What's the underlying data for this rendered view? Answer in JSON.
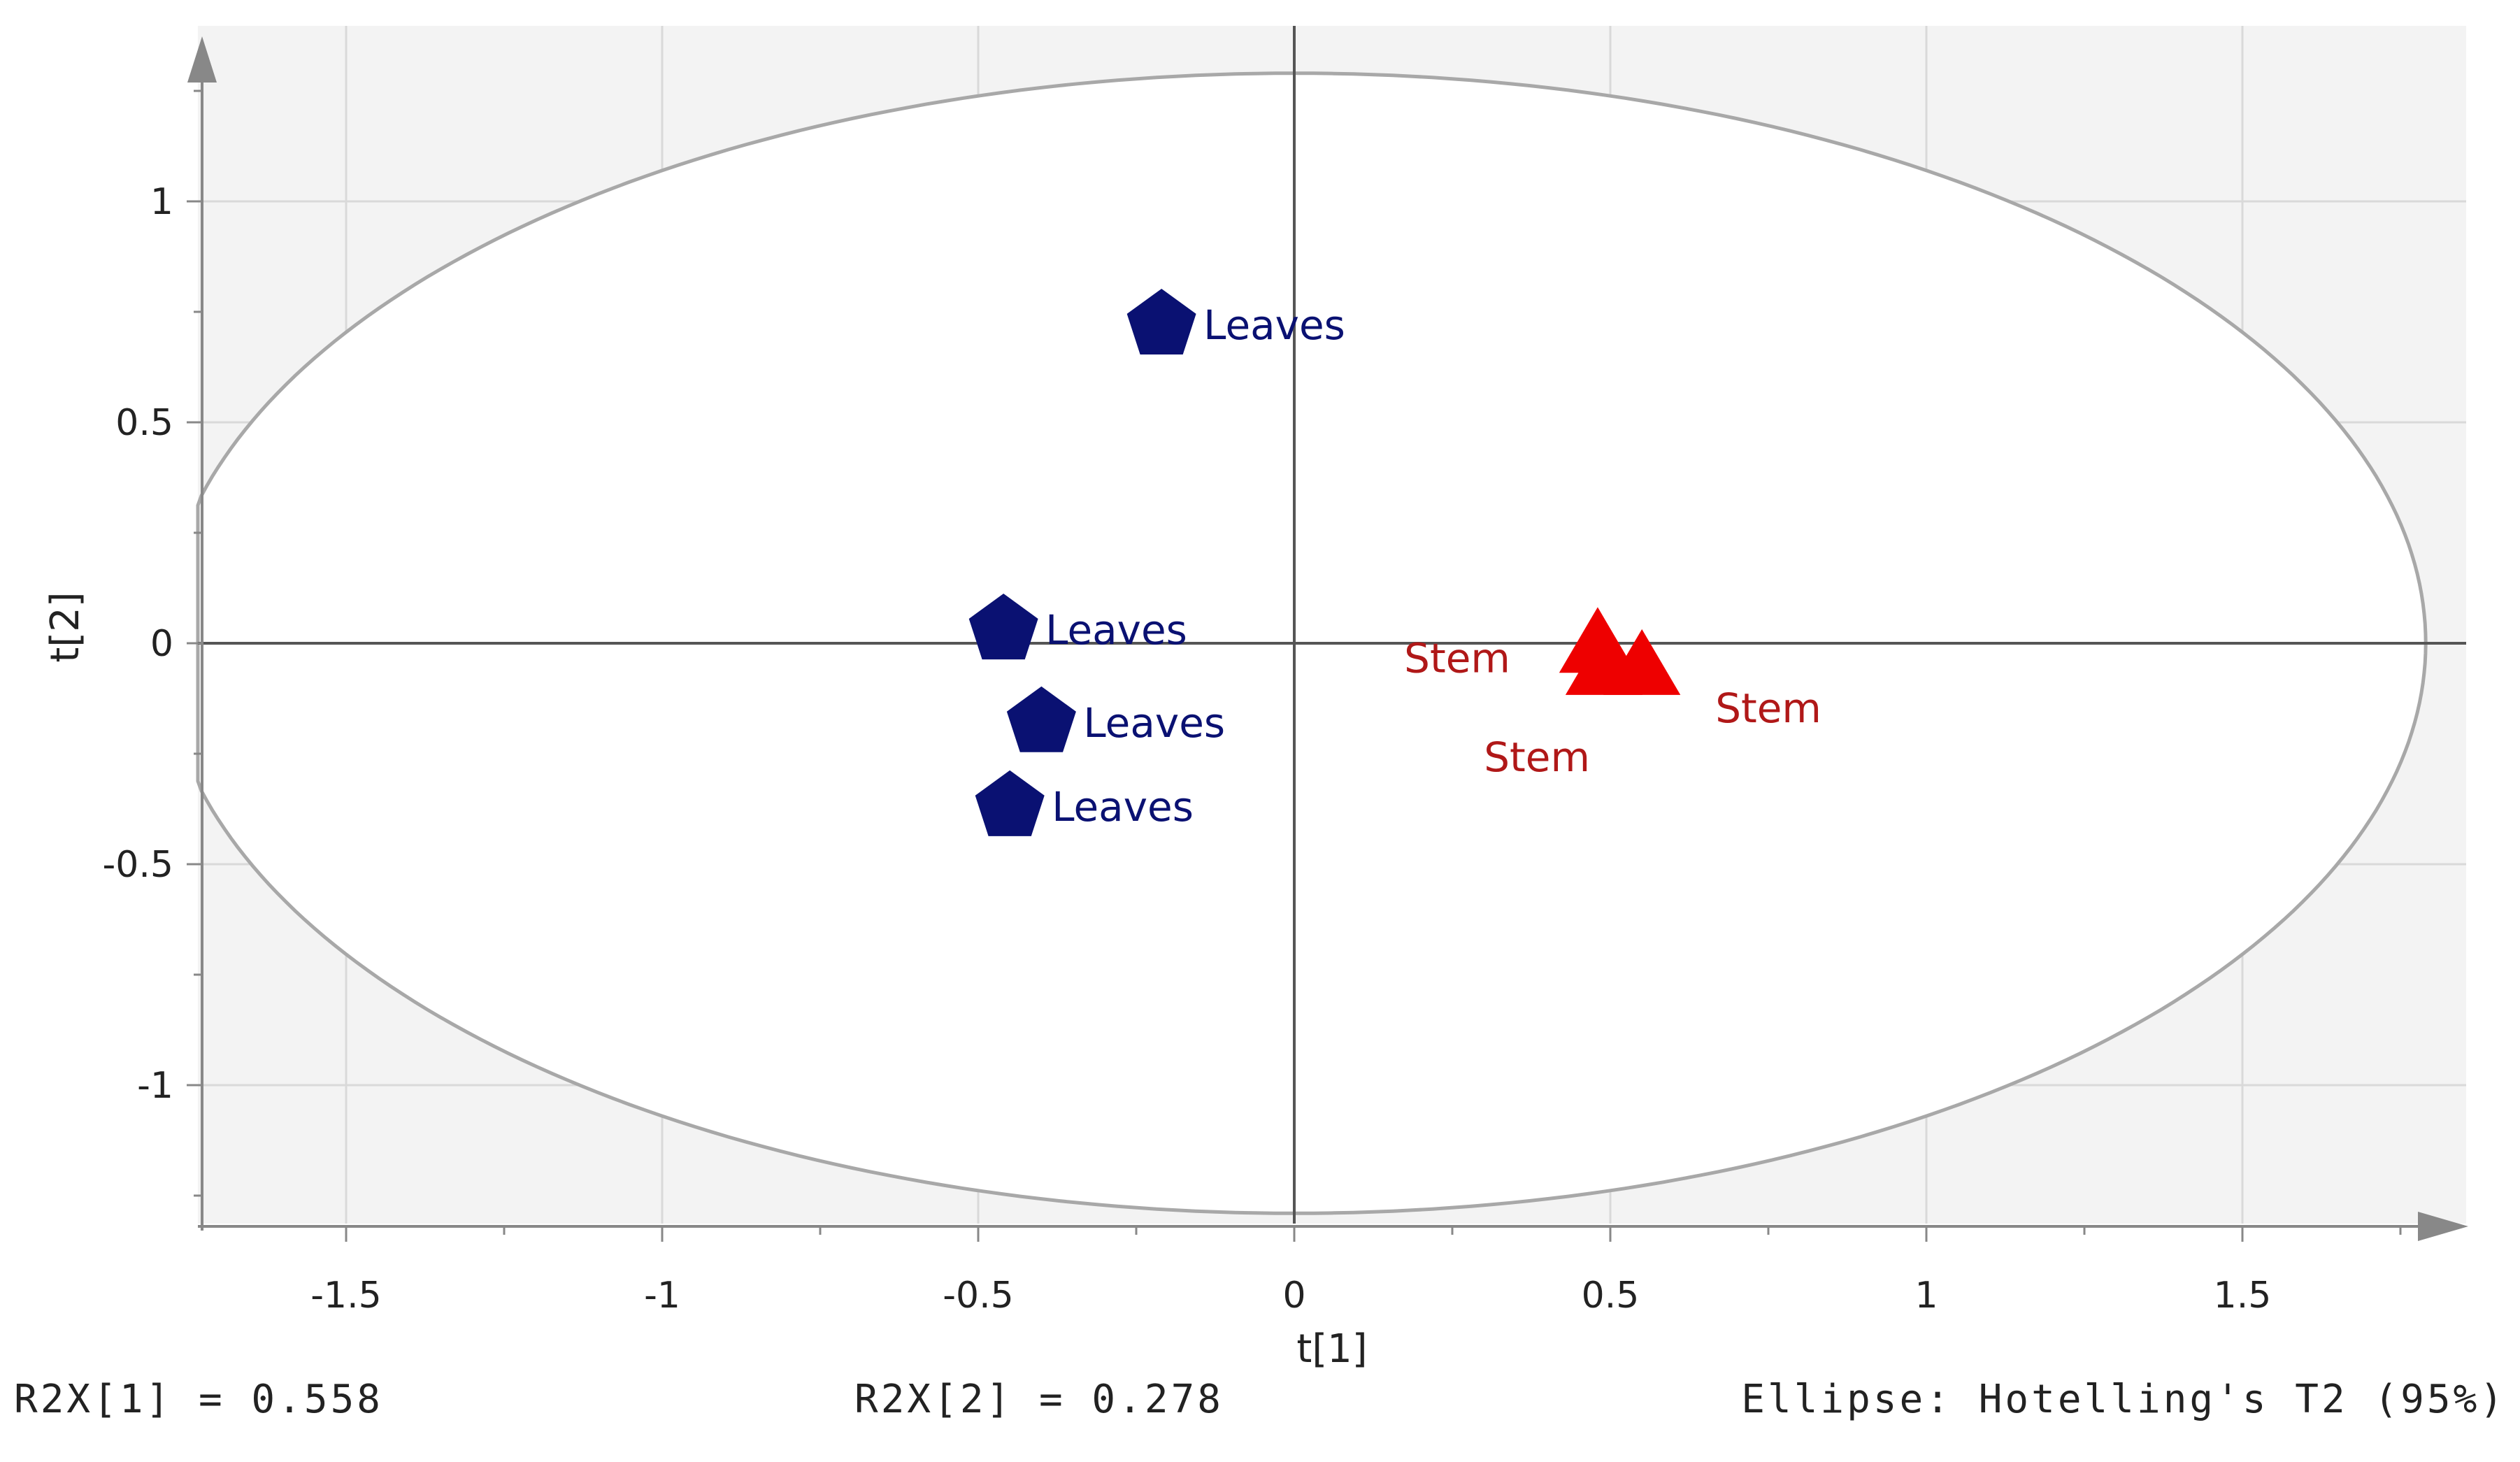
{
  "chart_data": {
    "type": "scatter",
    "xlabel": "t[1]",
    "ylabel": "t[2]",
    "xlim": [
      -1.75,
      1.8
    ],
    "ylim": [
      -1.3,
      1.35
    ],
    "x_ticks": [
      {
        "value": -1.5,
        "label": "-1.5"
      },
      {
        "value": -1,
        "label": "-1"
      },
      {
        "value": -0.5,
        "label": "-0.5"
      },
      {
        "value": 0,
        "label": "0"
      },
      {
        "value": 0.5,
        "label": "0.5"
      },
      {
        "value": 1,
        "label": "1"
      },
      {
        "value": 1.5,
        "label": "1.5"
      }
    ],
    "y_ticks": [
      {
        "value": 1,
        "label": "1"
      },
      {
        "value": 0.5,
        "label": "0.5"
      },
      {
        "value": 0,
        "label": "0"
      },
      {
        "value": -0.5,
        "label": "-0.5"
      },
      {
        "value": -1,
        "label": "-1"
      }
    ],
    "grid": true,
    "ellipse": {
      "rx": 1.79,
      "ry": 1.29
    },
    "series": [
      {
        "name": "Leaves",
        "marker": "pentagon",
        "color": "#0a1172",
        "points": [
          {
            "x": -0.21,
            "y": 0.72,
            "label": "Leaves"
          },
          {
            "x": -0.46,
            "y": 0.03,
            "label": "Leaves"
          },
          {
            "x": -0.4,
            "y": -0.18,
            "label": "Leaves"
          },
          {
            "x": -0.45,
            "y": -0.37,
            "label": "Leaves"
          }
        ]
      },
      {
        "name": "Stem",
        "marker": "triangle",
        "color": "#ee0000",
        "label_color": "#b01818",
        "points": [
          {
            "x": 0.48,
            "y": -0.01,
            "label": "Stem"
          },
          {
            "x": 0.55,
            "y": -0.06,
            "label": "Stem"
          },
          {
            "x": 0.49,
            "y": -0.06,
            "label": "Stem"
          }
        ]
      }
    ]
  },
  "footer": {
    "r2x1": "R2X[1] = 0.558",
    "r2x2": "R2X[2] = 0.278",
    "ellipse_note": "Ellipse: Hotelling's T2 (95%)"
  }
}
